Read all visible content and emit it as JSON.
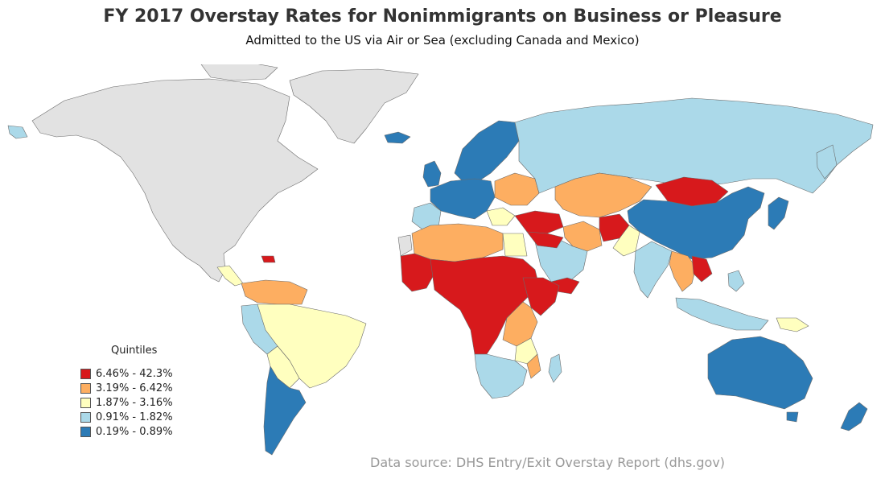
{
  "title": "FY 2017 Overstay Rates for Nonimmigrants on Business or Pleasure",
  "subtitle": "Admitted to the US via Air or Sea (excluding Canada and Mexico)",
  "legend": {
    "title": "Quintiles",
    "items": [
      {
        "label": "6.46% - 42.3%",
        "color": "#d7191c"
      },
      {
        "label": "3.19% - 6.42%",
        "color": "#fdae61"
      },
      {
        "label": "1.87% - 3.16%",
        "color": "#ffffbf"
      },
      {
        "label": "0.91% - 1.82%",
        "color": "#abd9e9"
      },
      {
        "label": "0.19% - 0.89%",
        "color": "#2c7bb6"
      }
    ]
  },
  "no_data_color": "#e2e2e2",
  "source": "Data source: DHS Entry/Exit Overstay Report (dhs.gov)"
}
